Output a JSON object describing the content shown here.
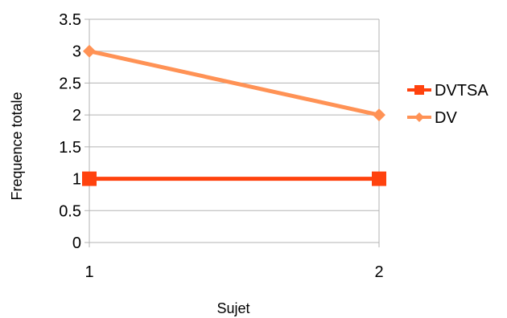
{
  "chart_data": {
    "type": "line",
    "title": "",
    "xlabel": "Sujet",
    "ylabel": "Frequence totale",
    "categories": [
      "1",
      "2"
    ],
    "ylim": [
      0,
      3.5
    ],
    "yticks": [
      "0",
      "0.5",
      "1",
      "1.5",
      "2",
      "2.5",
      "3",
      "3.5"
    ],
    "grid": true,
    "legend_position": "right",
    "series": [
      {
        "name": "DVTSA",
        "values": [
          1,
          1
        ],
        "color": "#ff420e",
        "marker": "square"
      },
      {
        "name": "DV",
        "values": [
          3,
          2
        ],
        "color": "#ff9255",
        "marker": "diamond"
      }
    ]
  }
}
